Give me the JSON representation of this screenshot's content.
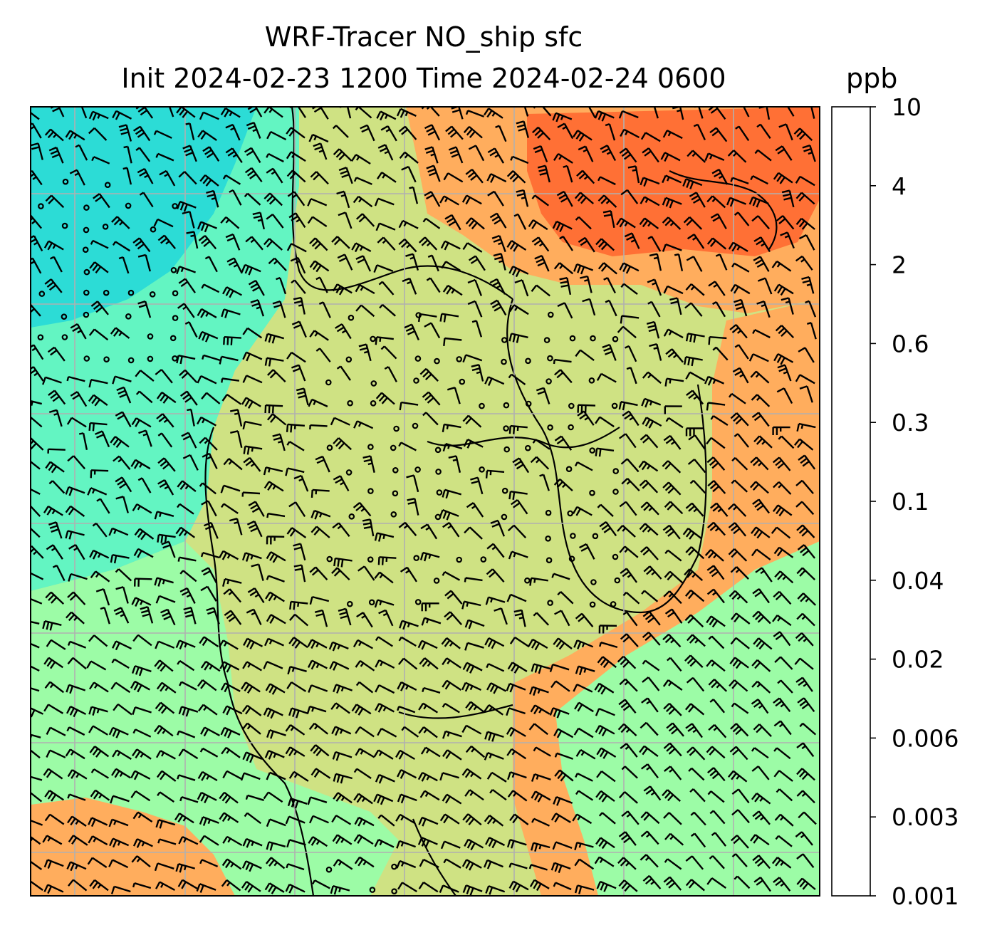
{
  "title": {
    "line1": "WRF-Tracer NO_ship sfc",
    "line2": "Init 2024-02-23 1200 Time 2024-02-24 0600",
    "units": "ppb"
  },
  "colorbar": {
    "levels": [
      "0.001",
      "0.003",
      "0.006",
      "0.02",
      "0.04",
      "0.1",
      "0.3",
      "0.6",
      "2",
      "4",
      "10"
    ],
    "colors": [
      "#6a2dff",
      "#3572f5",
      "#00b0ec",
      "#2cdcd6",
      "#63f5c2",
      "#9cfca6",
      "#cfe283",
      "#ffad5d",
      "#ff7035",
      "#ff2a15"
    ]
  },
  "map": {
    "field": "NO_ship surface concentration with wind barbs",
    "background_color": "#cfe283",
    "regions": [
      {
        "name": "north-west-low",
        "color": "#63f5c2"
      },
      {
        "name": "north-west-lowest",
        "color": "#2cdcd6"
      },
      {
        "name": "north-east-high",
        "color": "#ffad5d"
      },
      {
        "name": "north-east-highest",
        "color": "#ff7035"
      },
      {
        "name": "south-east-sea",
        "color": "#9cfca6"
      },
      {
        "name": "south-east-coast",
        "color": "#ffad5d"
      },
      {
        "name": "west-sea",
        "color": "#9cfca6"
      },
      {
        "name": "south-west-high",
        "color": "#ffad5d"
      }
    ],
    "gridlines": true,
    "gridline_color": "#b0b0b0"
  }
}
